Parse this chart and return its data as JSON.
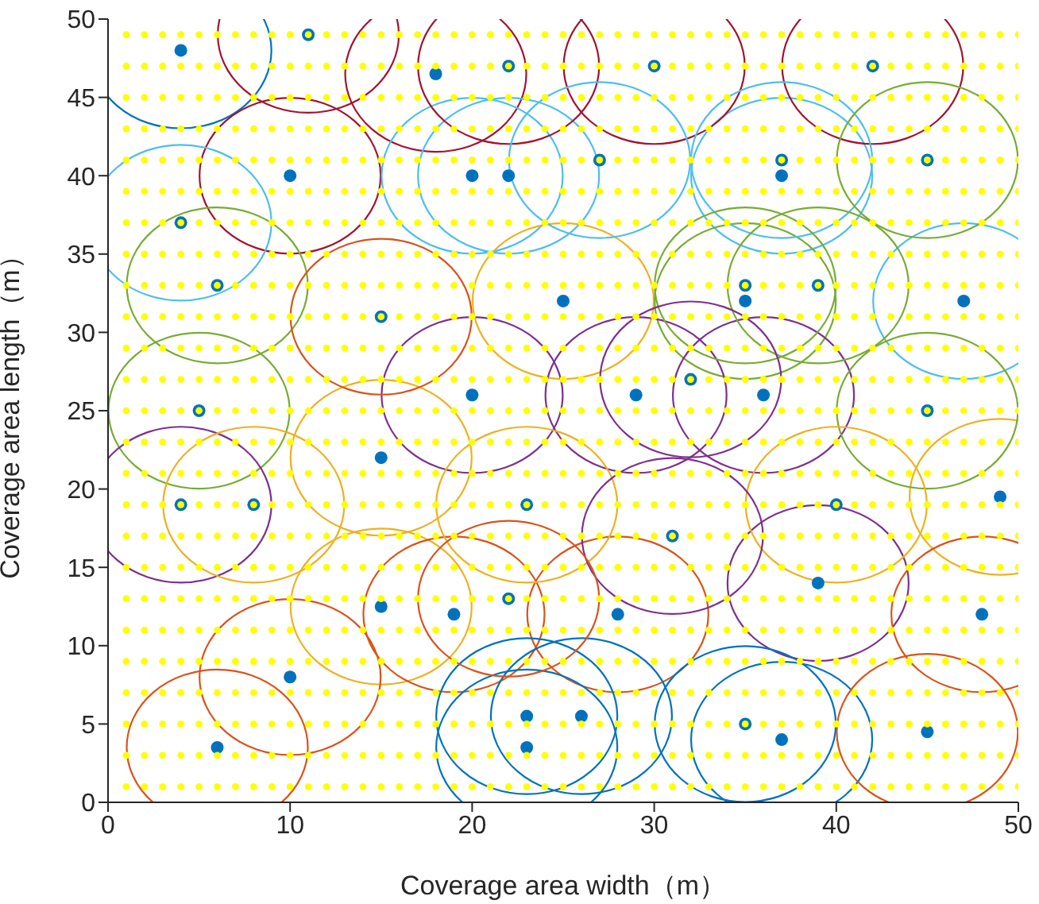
{
  "chart_data": {
    "type": "scatter",
    "xlabel": "Coverage area width（m）",
    "ylabel": "Coverage area length（m）",
    "xlim": [
      0,
      50
    ],
    "ylim": [
      0,
      50
    ],
    "xticks": [
      0,
      10,
      20,
      30,
      40,
      50
    ],
    "yticks": [
      0,
      5,
      10,
      15,
      20,
      25,
      30,
      35,
      40,
      45,
      50
    ],
    "marker": "circle",
    "grid": false,
    "legend": false,
    "x": [
      1,
      2,
      3,
      4,
      5,
      6,
      7,
      8,
      9,
      10,
      11,
      12,
      13,
      14,
      15,
      16,
      17,
      18,
      19,
      20,
      21,
      22,
      23,
      24,
      25,
      26,
      27,
      28,
      29,
      30,
      31,
      32,
      33,
      34,
      35,
      36,
      37,
      38,
      39,
      40,
      41,
      42,
      43,
      44,
      45,
      46,
      47,
      48,
      49,
      50
    ],
    "series": [
      {
        "color": "#0072bd",
        "x": [
          4,
          10,
          18,
          20,
          22,
          37,
          25,
          35,
          47,
          20,
          29,
          36,
          15,
          49,
          39,
          15,
          19,
          28,
          48,
          10,
          6,
          23,
          23,
          26,
          37,
          45,
          11,
          22,
          30,
          42,
          27,
          37,
          45,
          4,
          6,
          15,
          35,
          39,
          5,
          32,
          45,
          4,
          8,
          23,
          40,
          31,
          22,
          35
        ],
        "values": [
          48,
          40,
          46.5,
          40,
          40,
          40,
          32,
          32,
          32,
          26,
          26,
          26,
          22,
          19.5,
          14,
          12.5,
          12,
          12,
          12,
          8,
          3.5,
          5.5,
          3.5,
          5.5,
          4,
          4.5,
          49,
          47,
          47,
          47,
          41,
          41,
          41,
          37,
          33,
          31,
          33,
          33,
          25,
          27,
          25,
          19,
          19,
          19,
          19,
          17,
          13,
          5
        ]
      },
      {
        "color": "#ffff00",
        "values": [
          1,
          1,
          1,
          1,
          1,
          1,
          1,
          1,
          1,
          1,
          1,
          1,
          1,
          1,
          1,
          1,
          1,
          1,
          1,
          1,
          1,
          1,
          1,
          1,
          1,
          1,
          1,
          1,
          1,
          1,
          1,
          1,
          1,
          1,
          1,
          1,
          1,
          1,
          1,
          1,
          1,
          1,
          1,
          1,
          1,
          1,
          1,
          1,
          1,
          1
        ]
      },
      {
        "color": "#ffff00",
        "values": [
          3,
          3,
          3,
          3,
          3,
          3,
          3,
          3,
          3,
          3,
          3,
          3,
          3,
          3,
          3,
          3,
          3,
          3,
          3,
          3,
          3,
          3,
          3,
          3,
          3,
          3,
          3,
          3,
          3,
          3,
          3,
          3,
          3,
          3,
          3,
          3,
          3,
          3,
          3,
          3,
          3,
          3,
          3,
          3,
          3,
          3,
          3,
          3,
          3,
          3
        ]
      },
      {
        "color": "#ffff00",
        "values": [
          5,
          5,
          5,
          5,
          5,
          5,
          5,
          5,
          5,
          5,
          5,
          5,
          5,
          5,
          5,
          5,
          5,
          5,
          5,
          5,
          5,
          5,
          5,
          5,
          5,
          5,
          5,
          5,
          5,
          5,
          5,
          5,
          5,
          5,
          5,
          5,
          5,
          5,
          5,
          5,
          5,
          5,
          5,
          5,
          5,
          5,
          5,
          5,
          5,
          5
        ]
      },
      {
        "color": "#ffff00",
        "values": [
          7,
          7,
          7,
          7,
          7,
          7,
          7,
          7,
          7,
          7,
          7,
          7,
          7,
          7,
          7,
          7,
          7,
          7,
          7,
          7,
          7,
          7,
          7,
          7,
          7,
          7,
          7,
          7,
          7,
          7,
          7,
          7,
          7,
          7,
          7,
          7,
          7,
          7,
          7,
          7,
          7,
          7,
          7,
          7,
          7,
          7,
          7,
          7,
          7,
          7
        ]
      },
      {
        "color": "#ffff00",
        "values": [
          9,
          9,
          9,
          9,
          9,
          9,
          9,
          9,
          9,
          9,
          9,
          9,
          9,
          9,
          9,
          9,
          9,
          9,
          9,
          9,
          9,
          9,
          9,
          9,
          9,
          9,
          9,
          9,
          9,
          9,
          9,
          9,
          9,
          9,
          9,
          9,
          9,
          9,
          9,
          9,
          9,
          9,
          9,
          9,
          9,
          9,
          9,
          9,
          9,
          9
        ]
      },
      {
        "color": "#ffff00",
        "values": [
          11,
          11,
          11,
          11,
          11,
          11,
          11,
          11,
          11,
          11,
          11,
          11,
          11,
          11,
          11,
          11,
          11,
          11,
          11,
          11,
          11,
          11,
          11,
          11,
          11,
          11,
          11,
          11,
          11,
          11,
          11,
          11,
          11,
          11,
          11,
          11,
          11,
          11,
          11,
          11,
          11,
          11,
          11,
          11,
          11,
          11,
          11,
          11,
          11,
          11
        ]
      },
      {
        "color": "#ffff00",
        "values": [
          13,
          13,
          13,
          13,
          13,
          13,
          13,
          13,
          13,
          13,
          13,
          13,
          13,
          13,
          13,
          13,
          13,
          13,
          13,
          13,
          13,
          13,
          13,
          13,
          13,
          13,
          13,
          13,
          13,
          13,
          13,
          13,
          13,
          13,
          13,
          13,
          13,
          13,
          13,
          13,
          13,
          13,
          13,
          13,
          13,
          13,
          13,
          13,
          13,
          13
        ]
      },
      {
        "color": "#ffff00",
        "values": [
          15,
          15,
          15,
          15,
          15,
          15,
          15,
          15,
          15,
          15,
          15,
          15,
          15,
          15,
          15,
          15,
          15,
          15,
          15,
          15,
          15,
          15,
          15,
          15,
          15,
          15,
          15,
          15,
          15,
          15,
          15,
          15,
          15,
          15,
          15,
          15,
          15,
          15,
          15,
          15,
          15,
          15,
          15,
          15,
          15,
          15,
          15,
          15,
          15,
          15
        ]
      },
      {
        "color": "#ffff00",
        "values": [
          17,
          17,
          17,
          17,
          17,
          17,
          17,
          17,
          17,
          17,
          17,
          17,
          17,
          17,
          17,
          17,
          17,
          17,
          17,
          17,
          17,
          17,
          17,
          17,
          17,
          17,
          17,
          17,
          17,
          17,
          17,
          17,
          17,
          17,
          17,
          17,
          17,
          17,
          17,
          17,
          17,
          17,
          17,
          17,
          17,
          17,
          17,
          17,
          17,
          17
        ]
      },
      {
        "color": "#ffff00",
        "values": [
          19,
          19,
          19,
          19,
          19,
          19,
          19,
          19,
          19,
          19,
          19,
          19,
          19,
          19,
          19,
          19,
          19,
          19,
          19,
          19,
          19,
          19,
          19,
          19,
          19,
          19,
          19,
          19,
          19,
          19,
          19,
          19,
          19,
          19,
          19,
          19,
          19,
          19,
          19,
          19,
          19,
          19,
          19,
          19,
          19,
          19,
          19,
          19,
          19,
          19
        ]
      },
      {
        "color": "#ffff00",
        "values": [
          21,
          21,
          21,
          21,
          21,
          21,
          21,
          21,
          21,
          21,
          21,
          21,
          21,
          21,
          21,
          21,
          21,
          21,
          21,
          21,
          21,
          21,
          21,
          21,
          21,
          21,
          21,
          21,
          21,
          21,
          21,
          21,
          21,
          21,
          21,
          21,
          21,
          21,
          21,
          21,
          21,
          21,
          21,
          21,
          21,
          21,
          21,
          21,
          21,
          21
        ]
      },
      {
        "color": "#ffff00",
        "values": [
          23,
          23,
          23,
          23,
          23,
          23,
          23,
          23,
          23,
          23,
          23,
          23,
          23,
          23,
          23,
          23,
          23,
          23,
          23,
          23,
          23,
          23,
          23,
          23,
          23,
          23,
          23,
          23,
          23,
          23,
          23,
          23,
          23,
          23,
          23,
          23,
          23,
          23,
          23,
          23,
          23,
          23,
          23,
          23,
          23,
          23,
          23,
          23,
          23,
          23
        ]
      },
      {
        "color": "#ffff00",
        "values": [
          25,
          25,
          25,
          25,
          25,
          25,
          25,
          25,
          25,
          25,
          25,
          25,
          25,
          25,
          25,
          25,
          25,
          25,
          25,
          25,
          25,
          25,
          25,
          25,
          25,
          25,
          25,
          25,
          25,
          25,
          25,
          25,
          25,
          25,
          25,
          25,
          25,
          25,
          25,
          25,
          25,
          25,
          25,
          25,
          25,
          25,
          25,
          25,
          25,
          25
        ]
      },
      {
        "color": "#ffff00",
        "values": [
          27,
          27,
          27,
          27,
          27,
          27,
          27,
          27,
          27,
          27,
          27,
          27,
          27,
          27,
          27,
          27,
          27,
          27,
          27,
          27,
          27,
          27,
          27,
          27,
          27,
          27,
          27,
          27,
          27,
          27,
          27,
          27,
          27,
          27,
          27,
          27,
          27,
          27,
          27,
          27,
          27,
          27,
          27,
          27,
          27,
          27,
          27,
          27,
          27,
          27
        ]
      },
      {
        "color": "#ffff00",
        "values": [
          29,
          29,
          29,
          29,
          29,
          29,
          29,
          29,
          29,
          29,
          29,
          29,
          29,
          29,
          29,
          29,
          29,
          29,
          29,
          29,
          29,
          29,
          29,
          29,
          29,
          29,
          29,
          29,
          29,
          29,
          29,
          29,
          29,
          29,
          29,
          29,
          29,
          29,
          29,
          29,
          29,
          29,
          29,
          29,
          29,
          29,
          29,
          29,
          29,
          29
        ]
      },
      {
        "color": "#ffff00",
        "values": [
          31,
          31,
          31,
          31,
          31,
          31,
          31,
          31,
          31,
          31,
          31,
          31,
          31,
          31,
          31,
          31,
          31,
          31,
          31,
          31,
          31,
          31,
          31,
          31,
          31,
          31,
          31,
          31,
          31,
          31,
          31,
          31,
          31,
          31,
          31,
          31,
          31,
          31,
          31,
          31,
          31,
          31,
          31,
          31,
          31,
          31,
          31,
          31,
          31,
          31
        ]
      },
      {
        "color": "#ffff00",
        "values": [
          33,
          33,
          33,
          33,
          33,
          33,
          33,
          33,
          33,
          33,
          33,
          33,
          33,
          33,
          33,
          33,
          33,
          33,
          33,
          33,
          33,
          33,
          33,
          33,
          33,
          33,
          33,
          33,
          33,
          33,
          33,
          33,
          33,
          33,
          33,
          33,
          33,
          33,
          33,
          33,
          33,
          33,
          33,
          33,
          33,
          33,
          33,
          33,
          33,
          33
        ]
      },
      {
        "color": "#ffff00",
        "values": [
          35,
          35,
          35,
          35,
          35,
          35,
          35,
          35,
          35,
          35,
          35,
          35,
          35,
          35,
          35,
          35,
          35,
          35,
          35,
          35,
          35,
          35,
          35,
          35,
          35,
          35,
          35,
          35,
          35,
          35,
          35,
          35,
          35,
          35,
          35,
          35,
          35,
          35,
          35,
          35,
          35,
          35,
          35,
          35,
          35,
          35,
          35,
          35,
          35,
          35
        ]
      },
      {
        "color": "#ffff00",
        "values": [
          37,
          37,
          37,
          37,
          37,
          37,
          37,
          37,
          37,
          37,
          37,
          37,
          37,
          37,
          37,
          37,
          37,
          37,
          37,
          37,
          37,
          37,
          37,
          37,
          37,
          37,
          37,
          37,
          37,
          37,
          37,
          37,
          37,
          37,
          37,
          37,
          37,
          37,
          37,
          37,
          37,
          37,
          37,
          37,
          37,
          37,
          37,
          37,
          37,
          37
        ]
      },
      {
        "color": "#ffff00",
        "values": [
          39,
          39,
          39,
          39,
          39,
          39,
          39,
          39,
          39,
          39,
          39,
          39,
          39,
          39,
          39,
          39,
          39,
          39,
          39,
          39,
          39,
          39,
          39,
          39,
          39,
          39,
          39,
          39,
          39,
          39,
          39,
          39,
          39,
          39,
          39,
          39,
          39,
          39,
          39,
          39,
          39,
          39,
          39,
          39,
          39,
          39,
          39,
          39,
          39,
          39
        ]
      },
      {
        "color": "#ffff00",
        "values": [
          41,
          41,
          41,
          41,
          41,
          41,
          41,
          41,
          41,
          41,
          41,
          41,
          41,
          41,
          41,
          41,
          41,
          41,
          41,
          41,
          41,
          41,
          41,
          41,
          41,
          41,
          41,
          41,
          41,
          41,
          41,
          41,
          41,
          41,
          41,
          41,
          41,
          41,
          41,
          41,
          41,
          41,
          41,
          41,
          41,
          41,
          41,
          41,
          41,
          41
        ]
      },
      {
        "color": "#ffff00",
        "values": [
          43,
          43,
          43,
          43,
          43,
          43,
          43,
          43,
          43,
          43,
          43,
          43,
          43,
          43,
          43,
          43,
          43,
          43,
          43,
          43,
          43,
          43,
          43,
          43,
          43,
          43,
          43,
          43,
          43,
          43,
          43,
          43,
          43,
          43,
          43,
          43,
          43,
          43,
          43,
          43,
          43,
          43,
          43,
          43,
          43,
          43,
          43,
          43,
          43,
          43
        ]
      },
      {
        "color": "#ffff00",
        "values": [
          45,
          45,
          45,
          45,
          45,
          45,
          45,
          45,
          45,
          45,
          45,
          45,
          45,
          45,
          45,
          45,
          45,
          45,
          45,
          45,
          45,
          45,
          45,
          45,
          45,
          45,
          45,
          45,
          45,
          45,
          45,
          45,
          45,
          45,
          45,
          45,
          45,
          45,
          45,
          45,
          45,
          45,
          45,
          45,
          45,
          45,
          45,
          45,
          45,
          45
        ]
      },
      {
        "color": "#ffff00",
        "values": [
          47,
          47,
          47,
          47,
          47,
          47,
          47,
          47,
          47,
          47,
          47,
          47,
          47,
          47,
          47,
          47,
          47,
          47,
          47,
          47,
          47,
          47,
          47,
          47,
          47,
          47,
          47,
          47,
          47,
          47,
          47,
          47,
          47,
          47,
          47,
          47,
          47,
          47,
          47,
          47,
          47,
          47,
          47,
          47,
          47,
          47,
          47,
          47,
          47,
          47
        ]
      },
      {
        "color": "#ffff00",
        "values": [
          49,
          49,
          49,
          49,
          49,
          49,
          49,
          49,
          49,
          49,
          49,
          49,
          49,
          49,
          49,
          49,
          49,
          49,
          49,
          49,
          49,
          49,
          49,
          49,
          49,
          49,
          49,
          49,
          49,
          49,
          49,
          49,
          49,
          49,
          49,
          49,
          49,
          49,
          49,
          49,
          49,
          49,
          49,
          49,
          49,
          49,
          49,
          49,
          49,
          49
        ]
      }
    ]
  }
}
